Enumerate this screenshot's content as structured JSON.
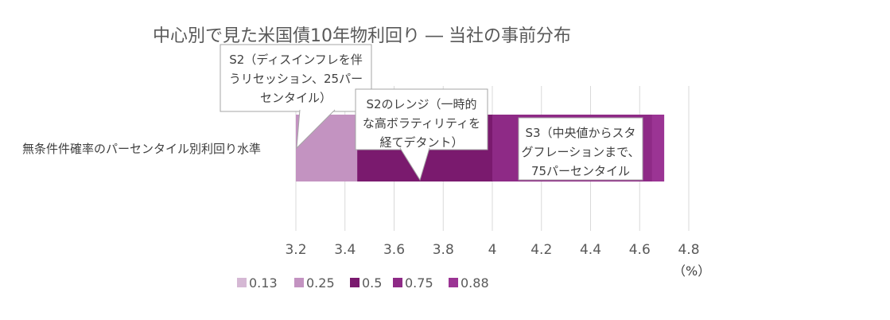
{
  "chart_data": {
    "type": "bar",
    "orientation": "horizontal",
    "stacked": true,
    "title": "中心別で見た米国債10年物利回り ― 当社の事前分布",
    "category": "無条件件確率のパーセンタイル別利回り水準",
    "unit_label": "（%）",
    "xlim": [
      3.2,
      4.8
    ],
    "xticks": [
      "3.2",
      "3.4",
      "3.6",
      "3.8",
      "4",
      "4.2",
      "4.4",
      "4.6",
      "4.8"
    ],
    "grid": "vertical",
    "legend_position": "bottom",
    "series": [
      {
        "name": "0.13",
        "value": 3.2,
        "color": "#d5b8d4"
      },
      {
        "name": "0.25",
        "value": 3.45,
        "color": "#c393c1"
      },
      {
        "name": "0.5",
        "value": 4.0,
        "color": "#7a1a6e"
      },
      {
        "name": "0.75",
        "value": 4.65,
        "color": "#8e2a86"
      },
      {
        "name": "0.88",
        "value": 4.7,
        "color": "#9b3494"
      }
    ],
    "annotations": [
      {
        "lines": [
          "S2（ディスインフレを伴",
          "うリセッション、25パー",
          "センタイル）"
        ]
      },
      {
        "lines": [
          "S2のレンジ（一時的",
          "な高ボラティリティを",
          "経てデタント）"
        ]
      },
      {
        "lines": [
          "S3（中央値からスタ",
          "グフレーションまで、",
          "75パーセンタイル"
        ]
      }
    ]
  }
}
